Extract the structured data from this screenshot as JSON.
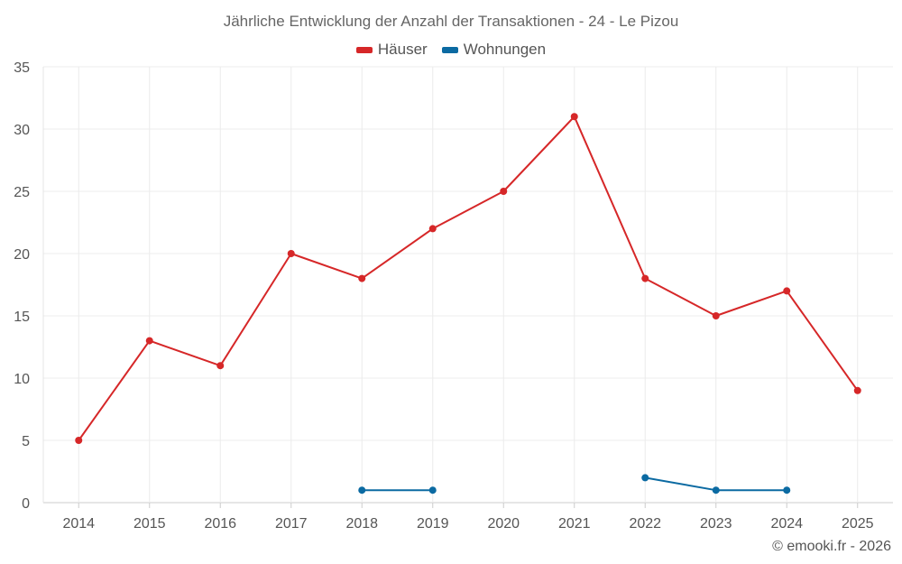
{
  "chart_data": {
    "type": "line",
    "title": "Jährliche Entwicklung der Anzahl der Transaktionen - 24 - Le Pizou",
    "xlabel": "",
    "ylabel": "",
    "categories": [
      "2014",
      "2015",
      "2016",
      "2017",
      "2018",
      "2019",
      "2020",
      "2021",
      "2022",
      "2023",
      "2024",
      "2025"
    ],
    "ylim": [
      0,
      35
    ],
    "yticks": [
      0,
      5,
      10,
      15,
      20,
      25,
      30,
      35
    ],
    "grid": true,
    "legend_position": "top-center",
    "series": [
      {
        "name": "Häuser",
        "color": "#d62728",
        "values": [
          5,
          13,
          11,
          20,
          18,
          22,
          25,
          31,
          18,
          15,
          17,
          9
        ]
      },
      {
        "name": "Wohnungen",
        "color": "#0b6aa2",
        "values": [
          null,
          null,
          null,
          null,
          1,
          1,
          null,
          null,
          2,
          1,
          1,
          null
        ]
      }
    ]
  },
  "credit": "© emooki.fr - 2026"
}
